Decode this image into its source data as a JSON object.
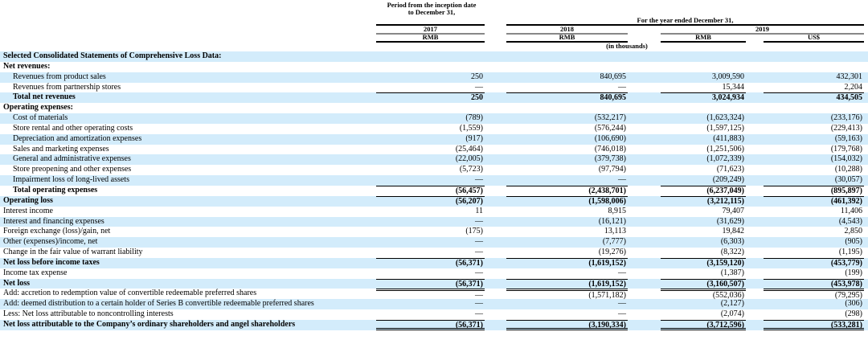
{
  "header": {
    "period_2017": "Period from the inception date to December 31,",
    "year_ended": "For the year ended December 31,",
    "y2017": "2017",
    "y2018": "2018",
    "y2019": "2019",
    "cur_2017": "RMB",
    "cur_2018": "RMB",
    "cur_2019_rmb": "RMB",
    "cur_2019_usd": "US$",
    "unit": "(in thousands)"
  },
  "rows": [
    {
      "label": "Selected Consolidated Statements of Comprehensive Loss Data:",
      "bold": true,
      "values": [
        "",
        "",
        "",
        ""
      ]
    },
    {
      "label": "Net revenues:",
      "bold": true,
      "values": [
        "",
        "",
        "",
        ""
      ]
    },
    {
      "label": "Revenues from product sales",
      "indent": true,
      "values": [
        "250",
        "840,695",
        "3,009,590",
        "432,301"
      ]
    },
    {
      "label": "Revenues from partnership stores",
      "indent": true,
      "values": [
        "—",
        "—",
        "15,344",
        "2,204"
      ]
    },
    {
      "label": "Total net revenues",
      "indent": true,
      "bold": true,
      "rule": "top",
      "values": [
        "250",
        "840,695",
        "3,024,934",
        "434,505"
      ]
    },
    {
      "label": "Operating expenses:",
      "bold": true,
      "values": [
        "",
        "",
        "",
        ""
      ]
    },
    {
      "label": "Cost of materials",
      "indent": true,
      "values": [
        "(789)",
        "(532,217)",
        "(1,623,324)",
        "(233,176)"
      ]
    },
    {
      "label": "Store rental and other operating costs",
      "indent": true,
      "values": [
        "(1,559)",
        "(576,244)",
        "(1,597,125)",
        "(229,413)"
      ]
    },
    {
      "label": "Depreciation and amortization expenses",
      "indent": true,
      "values": [
        "(917)",
        "(106,690)",
        "(411,883)",
        "(59,163)"
      ]
    },
    {
      "label": "Sales and marketing expenses",
      "indent": true,
      "values": [
        "(25,464)",
        "(746,018)",
        "(1,251,506)",
        "(179,768)"
      ]
    },
    {
      "label": "General and administrative expenses",
      "indent": true,
      "values": [
        "(22,005)",
        "(379,738)",
        "(1,072,339)",
        "(154,032)"
      ]
    },
    {
      "label": "Store preopening and other expenses",
      "indent": true,
      "values": [
        "(5,723)",
        "(97,794)",
        "(71,623)",
        "(10,288)"
      ]
    },
    {
      "label": "Impairment loss of long-lived assets",
      "indent": true,
      "values": [
        "—",
        "—",
        "(209,249)",
        "(30,057)"
      ]
    },
    {
      "label": "Total operating expenses",
      "indent": true,
      "bold": true,
      "rule": "top",
      "values": [
        "(56,457)",
        "(2,438,701)",
        "(6,237,049)",
        "(895,897)"
      ]
    },
    {
      "label": "Operating loss",
      "bold": true,
      "rule": "top",
      "values": [
        "(56,207)",
        "(1,598,006)",
        "(3,212,115)",
        "(461,392)"
      ]
    },
    {
      "label": "Interest income",
      "values": [
        "11",
        "8,915",
        "79,407",
        "11,406"
      ]
    },
    {
      "label": "Interest and financing expenses",
      "values": [
        "—",
        "(16,121)",
        "(31,629)",
        "(4,543)"
      ]
    },
    {
      "label": "Foreign exchange (loss)/gain, net",
      "values": [
        "(175)",
        "13,113",
        "19,842",
        "2,850"
      ]
    },
    {
      "label": "Other (expenses)/income, net",
      "values": [
        "—",
        "(7,777)",
        "(6,303)",
        "(905)"
      ]
    },
    {
      "label": "Change in the fair value of warrant liability",
      "values": [
        "—",
        "(19,276)",
        "(8,322)",
        "(1,195)"
      ]
    },
    {
      "label": "Net loss before income taxes",
      "bold": true,
      "rule": "top",
      "values": [
        "(56,371)",
        "(1,619,152)",
        "(3,159,120)",
        "(453,779)"
      ]
    },
    {
      "label": "Income tax expense",
      "values": [
        "—",
        "—",
        "(1,387)",
        "(199)"
      ]
    },
    {
      "label": "Net loss",
      "bold": true,
      "rule": "top",
      "values": [
        "(56,371)",
        "(1,619,152)",
        "(3,160,507)",
        "(453,978)"
      ]
    },
    {
      "label": "Add: accretion to redemption value of convertible redeemable preferred shares",
      "rule": "dblt",
      "values": [
        "—",
        "(1,571,182)",
        "(552,036)",
        "(79,295)"
      ]
    },
    {
      "label": "Add: deemed distribution to a certain holder of Series B convertible redeemable preferred shares",
      "values": [
        "—",
        "—",
        "(2,127)",
        "(306)"
      ]
    },
    {
      "label": "Less: Net loss attributable to noncontrolling interests",
      "values": [
        "—",
        "—",
        "(2,074)",
        "(298)"
      ]
    },
    {
      "label": "Net loss attributable to the Company’s ordinary shareholders and angel shareholders",
      "bold": true,
      "rule": "top dbl",
      "values": [
        "(56,371)",
        "(3,190,334)",
        "(3,712,596)",
        "(533,281)"
      ]
    }
  ]
}
